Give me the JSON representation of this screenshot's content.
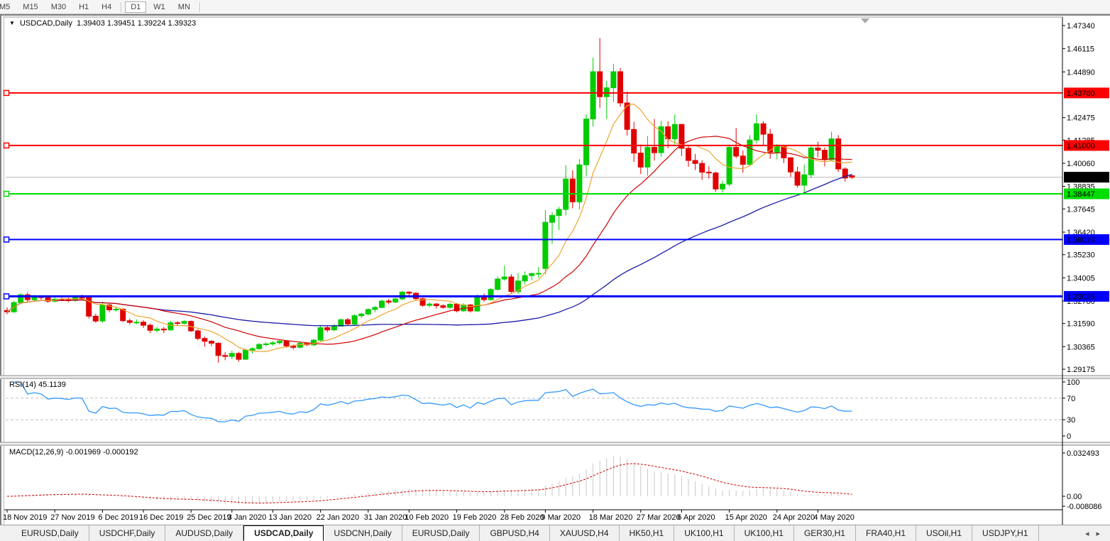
{
  "toolbar": {
    "timeframes": [
      "M5",
      "M15",
      "M30",
      "H1",
      "H4",
      "D1",
      "W1",
      "MN"
    ],
    "active": "D1"
  },
  "chart": {
    "title_symbol": "USDCAD,Daily",
    "title_ohlc": "1.39403 1.39451 1.39224 1.39323"
  },
  "indicators": {
    "rsi_label": "RSI(14) 45.1139",
    "macd_label": "MACD(12,26,9) -0.001969 -0.000192"
  },
  "chart_data": {
    "type": "candlestick",
    "symbol": "USDCAD",
    "period": "Daily",
    "colors": {
      "up": "#00CC00",
      "down": "#E00000",
      "ma_fast": "#EDA52E",
      "ma_mid": "#D00000",
      "ma_slow": "#1C1CA8",
      "rsi": "#3399FF",
      "rsi_grid": "#C0C0C0",
      "macd_hist": "#C8C8C8",
      "macd_signal": "#D00000",
      "price_line": "#BBBBBB",
      "axis_line": "#000000"
    },
    "ma_periods": {
      "fast": 8,
      "mid": 21,
      "slow": 55
    },
    "price_axis": {
      "ticks": [
        1.4734,
        1.46115,
        1.4489,
        1.42475,
        1.41285,
        1.4006,
        1.38835,
        1.37645,
        1.3642,
        1.3523,
        1.34005,
        1.3278,
        1.3159,
        1.30365,
        1.29175
      ]
    },
    "current_price": {
      "value": 1.39323,
      "label": "1.39323",
      "badge_bg": "#000000",
      "badge_fg": "#FFFFFF"
    },
    "hlines": [
      {
        "price": 1.4378,
        "label": "1.43780",
        "color": "#FF0000",
        "text": "#FFFFFF",
        "width": 2
      },
      {
        "price": 1.41,
        "label": "1.41000",
        "color": "#FF0000",
        "text": "#FFFFFF",
        "width": 2
      },
      {
        "price": 1.38447,
        "label": "1.38447",
        "color": "#00DD00",
        "text": "#000000",
        "width": 2
      },
      {
        "price": 1.36029,
        "label": "1.36029",
        "color": "#0000FF",
        "text": "#FFFFFF",
        "width": 2
      },
      {
        "price": 1.33026,
        "label": "1.33026",
        "color": "#0000FF",
        "text": "#FFFFFF",
        "width": 3
      }
    ],
    "candles": [
      [
        1.3228,
        1.3245,
        1.3208,
        1.3221
      ],
      [
        1.3221,
        1.3278,
        1.3215,
        1.327
      ],
      [
        1.327,
        1.332,
        1.326,
        1.3311
      ],
      [
        1.3311,
        1.3324,
        1.3274,
        1.3285
      ],
      [
        1.3285,
        1.331,
        1.3276,
        1.33
      ],
      [
        1.33,
        1.3309,
        1.3285,
        1.3296
      ],
      [
        1.3296,
        1.3305,
        1.3268,
        1.3277
      ],
      [
        1.3277,
        1.3298,
        1.327,
        1.3287
      ],
      [
        1.3287,
        1.3296,
        1.3278,
        1.3285
      ],
      [
        1.3285,
        1.3295,
        1.3272,
        1.3281
      ],
      [
        1.3281,
        1.3304,
        1.3276,
        1.3297
      ],
      [
        1.3297,
        1.3312,
        1.3289,
        1.3296
      ],
      [
        1.3296,
        1.33,
        1.3185,
        1.3198
      ],
      [
        1.3198,
        1.321,
        1.3163,
        1.3172
      ],
      [
        1.3172,
        1.3274,
        1.3164,
        1.3257
      ],
      [
        1.3257,
        1.3264,
        1.3218,
        1.3231
      ],
      [
        1.3231,
        1.3248,
        1.3221,
        1.3235
      ],
      [
        1.3235,
        1.324,
        1.3166,
        1.3174
      ],
      [
        1.3174,
        1.3185,
        1.3154,
        1.3165
      ],
      [
        1.3165,
        1.3181,
        1.3156,
        1.3166
      ],
      [
        1.3166,
        1.3176,
        1.3136,
        1.315
      ],
      [
        1.315,
        1.3158,
        1.3109,
        1.3123
      ],
      [
        1.3123,
        1.3142,
        1.3112,
        1.313
      ],
      [
        1.313,
        1.3141,
        1.3108,
        1.3125
      ],
      [
        1.3125,
        1.3173,
        1.312,
        1.3163
      ],
      [
        1.3163,
        1.3172,
        1.3148,
        1.316
      ],
      [
        1.316,
        1.3176,
        1.3154,
        1.317
      ],
      [
        1.317,
        1.3175,
        1.3114,
        1.312
      ],
      [
        1.312,
        1.3128,
        1.307,
        1.308
      ],
      [
        1.308,
        1.309,
        1.3036,
        1.3065
      ],
      [
        1.3065,
        1.3072,
        1.3038,
        1.3055
      ],
      [
        1.3055,
        1.306,
        1.2952,
        1.299
      ],
      [
        1.299,
        1.3008,
        1.2965,
        1.2985
      ],
      [
        1.2985,
        1.3016,
        1.297,
        1.3001
      ],
      [
        1.3001,
        1.301,
        1.2957,
        1.297
      ],
      [
        1.297,
        1.3025,
        1.2966,
        1.3018
      ],
      [
        1.3018,
        1.3033,
        1.3001,
        1.3026
      ],
      [
        1.3026,
        1.3056,
        1.302,
        1.3048
      ],
      [
        1.3048,
        1.306,
        1.3038,
        1.3051
      ],
      [
        1.3051,
        1.3066,
        1.3042,
        1.3057
      ],
      [
        1.3057,
        1.3072,
        1.3048,
        1.3066
      ],
      [
        1.3066,
        1.307,
        1.3031,
        1.304
      ],
      [
        1.304,
        1.3048,
        1.3022,
        1.3033
      ],
      [
        1.3033,
        1.3063,
        1.3028,
        1.3054
      ],
      [
        1.3054,
        1.306,
        1.304,
        1.3046
      ],
      [
        1.3046,
        1.3078,
        1.304,
        1.3071
      ],
      [
        1.3071,
        1.3148,
        1.3065,
        1.3137
      ],
      [
        1.3137,
        1.3145,
        1.3113,
        1.3125
      ],
      [
        1.3125,
        1.3156,
        1.3119,
        1.3145
      ],
      [
        1.3145,
        1.3185,
        1.3142,
        1.3179
      ],
      [
        1.3179,
        1.3188,
        1.3148,
        1.3156
      ],
      [
        1.3156,
        1.3209,
        1.315,
        1.32
      ],
      [
        1.32,
        1.3215,
        1.3187,
        1.3209
      ],
      [
        1.3209,
        1.324,
        1.3201,
        1.3233
      ],
      [
        1.3233,
        1.3252,
        1.3219,
        1.3244
      ],
      [
        1.3244,
        1.3285,
        1.324,
        1.3278
      ],
      [
        1.3278,
        1.3289,
        1.3261,
        1.3272
      ],
      [
        1.3272,
        1.3298,
        1.3267,
        1.3289
      ],
      [
        1.3289,
        1.3332,
        1.3282,
        1.3325
      ],
      [
        1.3325,
        1.333,
        1.3306,
        1.3319
      ],
      [
        1.3319,
        1.3325,
        1.3282,
        1.329
      ],
      [
        1.329,
        1.3296,
        1.3248,
        1.3255
      ],
      [
        1.3255,
        1.3271,
        1.3244,
        1.3262
      ],
      [
        1.3262,
        1.3268,
        1.3238,
        1.3253
      ],
      [
        1.3253,
        1.326,
        1.3238,
        1.3244
      ],
      [
        1.3244,
        1.3269,
        1.3235,
        1.3261
      ],
      [
        1.3261,
        1.3267,
        1.3218,
        1.3226
      ],
      [
        1.3226,
        1.3267,
        1.322,
        1.3257
      ],
      [
        1.3257,
        1.3262,
        1.3217,
        1.3225
      ],
      [
        1.3225,
        1.3313,
        1.3222,
        1.3303
      ],
      [
        1.3303,
        1.3317,
        1.3274,
        1.3285
      ],
      [
        1.3285,
        1.3347,
        1.328,
        1.3339
      ],
      [
        1.3339,
        1.3407,
        1.3333,
        1.3394
      ],
      [
        1.3394,
        1.3464,
        1.3385,
        1.3405
      ],
      [
        1.3405,
        1.342,
        1.332,
        1.3328
      ],
      [
        1.3328,
        1.3425,
        1.3315,
        1.3384
      ],
      [
        1.3384,
        1.3434,
        1.3365,
        1.3412
      ],
      [
        1.3412,
        1.3428,
        1.3387,
        1.3423
      ],
      [
        1.3423,
        1.3458,
        1.3401,
        1.3424
      ],
      [
        1.345,
        1.3758,
        1.342,
        1.3694
      ],
      [
        1.3694,
        1.3747,
        1.358,
        1.373
      ],
      [
        1.373,
        1.3775,
        1.3653,
        1.3762
      ],
      [
        1.3762,
        1.3995,
        1.373,
        1.3923
      ],
      [
        1.3923,
        1.3969,
        1.3768,
        1.3802
      ],
      [
        1.3802,
        1.4028,
        1.3762,
        1.3998
      ],
      [
        1.3998,
        1.4265,
        1.3938,
        1.424
      ],
      [
        1.424,
        1.4564,
        1.42,
        1.449
      ],
      [
        1.449,
        1.4668,
        1.4297,
        1.4358
      ],
      [
        1.4358,
        1.4442,
        1.424,
        1.4405
      ],
      [
        1.4405,
        1.4532,
        1.433,
        1.449
      ],
      [
        1.449,
        1.451,
        1.4305,
        1.4325
      ],
      [
        1.4325,
        1.4385,
        1.4153,
        1.4185
      ],
      [
        1.4185,
        1.4225,
        1.4013,
        1.406
      ],
      [
        1.406,
        1.4105,
        1.3949,
        1.3986
      ],
      [
        1.3986,
        1.415,
        1.394,
        1.409
      ],
      [
        1.409,
        1.424,
        1.402,
        1.4062
      ],
      [
        1.4062,
        1.423,
        1.404,
        1.4199
      ],
      [
        1.4199,
        1.4228,
        1.4085,
        1.4135
      ],
      [
        1.4135,
        1.4264,
        1.4105,
        1.4211
      ],
      [
        1.4211,
        1.4215,
        1.4044,
        1.4085
      ],
      [
        1.4085,
        1.4103,
        1.3987,
        1.4021
      ],
      [
        1.4021,
        1.4055,
        1.397,
        1.4005
      ],
      [
        1.4005,
        1.4022,
        1.3918,
        1.3959
      ],
      [
        1.3959,
        1.399,
        1.3926,
        1.3955
      ],
      [
        1.3955,
        1.3962,
        1.3855,
        1.387
      ],
      [
        1.387,
        1.3913,
        1.3852,
        1.3896
      ],
      [
        1.3896,
        1.4105,
        1.3885,
        1.409
      ],
      [
        1.409,
        1.4192,
        1.4032,
        1.4044
      ],
      [
        1.4044,
        1.4073,
        1.3956,
        1.4
      ],
      [
        1.4,
        1.4154,
        1.399,
        1.4129
      ],
      [
        1.4129,
        1.4265,
        1.411,
        1.4215
      ],
      [
        1.4215,
        1.4228,
        1.4099,
        1.416
      ],
      [
        1.416,
        1.4187,
        1.403,
        1.4065
      ],
      [
        1.4065,
        1.4108,
        1.4026,
        1.4095
      ],
      [
        1.4095,
        1.4103,
        1.4007,
        1.4035
      ],
      [
        1.4035,
        1.4039,
        1.3934,
        1.396
      ],
      [
        1.396,
        1.3988,
        1.3877,
        1.389
      ],
      [
        1.389,
        1.3999,
        1.385,
        1.3945
      ],
      [
        1.3945,
        1.4102,
        1.3928,
        1.4087
      ],
      [
        1.4087,
        1.412,
        1.4038,
        1.4075
      ],
      [
        1.4075,
        1.409,
        1.399,
        1.4025
      ],
      [
        1.4025,
        1.4173,
        1.4017,
        1.4135
      ],
      [
        1.4135,
        1.4155,
        1.396,
        1.3976
      ],
      [
        1.3976,
        1.3985,
        1.391,
        1.3928
      ],
      [
        1.39403,
        1.39451,
        1.39224,
        1.39323
      ]
    ],
    "date_ticks": [
      {
        "i": 0,
        "label": "18 Nov 2019"
      },
      {
        "i": 7,
        "label": "27 Nov 2019"
      },
      {
        "i": 14,
        "label": "6 Dec 2019"
      },
      {
        "i": 20,
        "label": "16 Dec 2019"
      },
      {
        "i": 27,
        "label": "25 Dec 2019"
      },
      {
        "i": 33,
        "label": "3 Jan 2020"
      },
      {
        "i": 39,
        "label": "13 Jan 2020"
      },
      {
        "i": 46,
        "label": "22 Jan 2020"
      },
      {
        "i": 53,
        "label": "31 Jan 2020"
      },
      {
        "i": 59,
        "label": "10 Feb 2020"
      },
      {
        "i": 66,
        "label": "19 Feb 2020"
      },
      {
        "i": 73,
        "label": "28 Feb 2020"
      },
      {
        "i": 79,
        "label": "9 Mar 2020"
      },
      {
        "i": 86,
        "label": "18 Mar 2020"
      },
      {
        "i": 93,
        "label": "27 Mar 2020"
      },
      {
        "i": 99,
        "label": "6 Apr 2020"
      },
      {
        "i": 106,
        "label": "15 Apr 2020"
      },
      {
        "i": 113,
        "label": "24 Apr 2020"
      },
      {
        "i": 119,
        "label": "4 May 2020"
      }
    ],
    "rsi": {
      "label": "RSI(14) 45.1139",
      "period": 14,
      "scale_labels": [
        "100",
        "70",
        "30",
        "0"
      ],
      "levels": [
        70,
        30
      ]
    },
    "macd": {
      "label": "MACD(12,26,9) -0.001969 -0.000192",
      "fast": 12,
      "slow": 26,
      "signal": 9,
      "axis": {
        "max_label": "0.032493",
        "zero_label": "0.00",
        "min_label": "-0.008086",
        "max": 0.032493,
        "min": -0.008086
      }
    }
  },
  "tabs": {
    "items": [
      "EURUSD,Daily",
      "USDCHF,Daily",
      "AUDUSD,Daily",
      "USDCAD,Daily",
      "USDCNH,Daily",
      "EURUSD,Daily",
      "GBPUSD,H4",
      "XAUUSD,H4",
      "HK50,H1",
      "UK100,H1",
      "UK100,H1",
      "GER30,H1",
      "FRA40,H1",
      "USOil,H1",
      "USDJPY,H1"
    ],
    "active_index": 3,
    "nav_left": "◂",
    "nav_right": "▸"
  }
}
